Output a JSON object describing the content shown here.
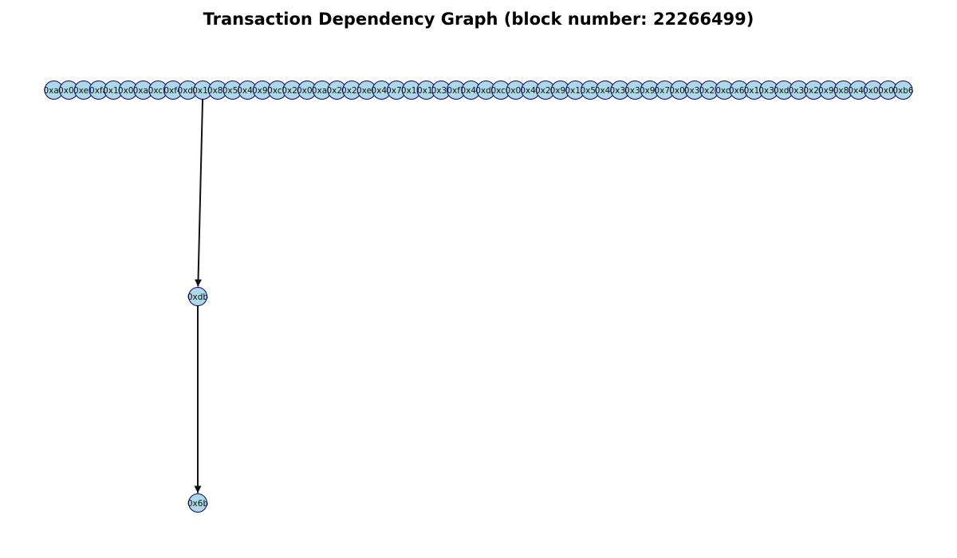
{
  "title": "Transaction Dependency Graph (block number: 22266499)",
  "colors": {
    "node_fill": "#add8e6",
    "node_stroke": "#00008b",
    "edge": "#111111",
    "title": "#000000"
  },
  "graph": {
    "layout": "layered top-down",
    "layers": [
      [
        "0xa6",
        "0x07",
        "0xe1",
        "0xfa",
        "0x16",
        "0x0e",
        "0xa4",
        "0xc5",
        "0xf4",
        "0xd2",
        "0x1b",
        "0x8d",
        "0x5a",
        "0x48",
        "0x91",
        "0xc7",
        "0x2b",
        "0x04",
        "0xa6",
        "0x2e",
        "0x27",
        "0xe7",
        "0x4b",
        "0x74",
        "0x1a",
        "0x1f",
        "0x3c",
        "0xf1",
        "0x4d",
        "0xd1",
        "0xc6",
        "0x0b",
        "0x46",
        "0x28",
        "0x99",
        "0x18",
        "0x5c",
        "0x4e",
        "0x3e",
        "0x39",
        "0x9a",
        "0x7d",
        "0x0e",
        "0x3b",
        "0x28",
        "0xcf",
        "0x62",
        "0x1e",
        "0x3d",
        "0xd9",
        "0x33",
        "0x2e",
        "0x9b",
        "0x8e",
        "0x41",
        "0x09",
        "0x0c",
        "0xb6"
      ],
      [
        "0xdb"
      ],
      [
        "0x6b"
      ]
    ],
    "layer_spacing": "top row → 0xdb → 0x6b",
    "edges": [
      {
        "from": "0x1b",
        "to": "0xdb"
      },
      {
        "from": "0xdb",
        "to": "0x6b"
      }
    ]
  }
}
